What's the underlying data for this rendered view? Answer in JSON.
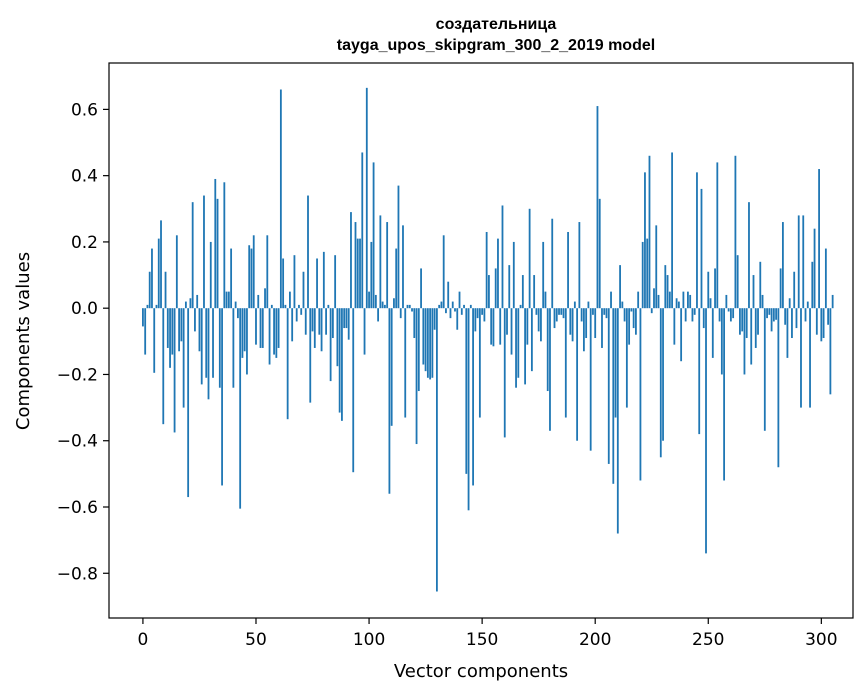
{
  "chart_data": {
    "type": "bar",
    "title_line1": "создательница",
    "title_line2": "tayga_upos_skipgram_300_2_2019 model",
    "xlabel": "Vector components",
    "ylabel": "Components values",
    "xlim": [
      -15,
      314
    ],
    "ylim": [
      -0.935,
      0.74
    ],
    "xticks": [
      0,
      50,
      100,
      150,
      200,
      250,
      300
    ],
    "xtick_labels": [
      "0",
      "50",
      "100",
      "150",
      "200",
      "250",
      "300"
    ],
    "yticks": [
      0.6,
      0.4,
      0.2,
      0.0,
      -0.2,
      -0.4,
      -0.6,
      -0.8
    ],
    "ytick_labels": [
      "0.6",
      "0.4",
      "0.2",
      "0.0",
      "−0.2",
      "−0.4",
      "−0.6",
      "−0.8"
    ],
    "bar_color": "#1f77b4",
    "values": [
      -0.055,
      -0.14,
      0.01,
      0.11,
      0.18,
      -0.195,
      0.01,
      0.21,
      0.265,
      -0.35,
      0.11,
      -0.12,
      -0.18,
      -0.14,
      -0.375,
      0.22,
      -0.13,
      -0.1,
      -0.3,
      0.02,
      -0.57,
      0.03,
      0.32,
      -0.07,
      0.04,
      -0.13,
      -0.23,
      0.34,
      -0.21,
      -0.275,
      0.2,
      -0.21,
      0.39,
      0.33,
      -0.24,
      -0.535,
      0.38,
      0.05,
      0.05,
      0.18,
      -0.24,
      0.02,
      -0.03,
      -0.605,
      -0.15,
      -0.13,
      -0.2,
      0.19,
      0.18,
      0.22,
      -0.11,
      0.04,
      -0.12,
      -0.12,
      0.06,
      0.22,
      -0.17,
      0.01,
      -0.14,
      -0.15,
      -0.12,
      0.66,
      0.15,
      0.01,
      -0.335,
      0.05,
      -0.1,
      0.16,
      -0.04,
      0.01,
      -0.02,
      0.11,
      -0.08,
      0.34,
      -0.285,
      -0.07,
      -0.12,
      0.15,
      -0.08,
      -0.13,
      0.17,
      -0.08,
      0.01,
      -0.22,
      -0.09,
      0.16,
      -0.175,
      -0.315,
      -0.34,
      -0.06,
      -0.06,
      -0.095,
      0.29,
      -0.495,
      0.26,
      0.21,
      0.21,
      0.47,
      -0.14,
      0.665,
      0.05,
      0.2,
      0.44,
      0.04,
      -0.04,
      0.28,
      0.02,
      0.01,
      0.26,
      -0.56,
      -0.355,
      0.03,
      0.18,
      0.37,
      -0.03,
      0.25,
      -0.33,
      0.01,
      0.01,
      -0.01,
      -0.09,
      -0.41,
      -0.25,
      0.12,
      -0.17,
      -0.19,
      -0.21,
      -0.215,
      -0.21,
      -0.065,
      -0.855,
      0.01,
      0.02,
      0.22,
      -0.015,
      0.08,
      -0.03,
      0.02,
      -0.01,
      -0.065,
      0.05,
      -0.02,
      0.01,
      -0.5,
      -0.61,
      0.01,
      -0.535,
      -0.07,
      -0.03,
      -0.33,
      -0.02,
      -0.04,
      0.23,
      0.1,
      -0.11,
      -0.115,
      0.12,
      0.21,
      -0.11,
      0.31,
      -0.39,
      -0.08,
      0.13,
      -0.14,
      0.2,
      -0.24,
      -0.21,
      0.01,
      0.1,
      -0.23,
      -0.11,
      0.3,
      -0.19,
      0.1,
      -0.02,
      -0.07,
      -0.1,
      0.2,
      0.05,
      -0.25,
      -0.37,
      0.27,
      -0.06,
      -0.04,
      -0.02,
      -0.02,
      -0.03,
      -0.33,
      0.23,
      -0.08,
      -0.1,
      0.02,
      -0.4,
      0.26,
      -0.04,
      -0.13,
      -0.09,
      0.02,
      -0.43,
      -0.02,
      -0.09,
      0.61,
      0.33,
      -0.12,
      -0.02,
      -0.03,
      -0.47,
      0.05,
      -0.53,
      -0.33,
      -0.68,
      0.13,
      0.02,
      -0.04,
      -0.3,
      -0.11,
      -0.01,
      -0.06,
      -0.08,
      0.05,
      -0.52,
      0.2,
      0.41,
      0.21,
      0.46,
      -0.015,
      0.06,
      0.25,
      0.04,
      -0.45,
      -0.4,
      0.13,
      0.1,
      0.05,
      0.47,
      -0.11,
      0.03,
      0.02,
      -0.16,
      0.05,
      -0.04,
      0.05,
      0.04,
      -0.04,
      -0.02,
      0.41,
      -0.38,
      0.36,
      -0.06,
      -0.74,
      0.11,
      0.03,
      -0.15,
      0.12,
      0.44,
      -0.04,
      -0.2,
      -0.52,
      0.04,
      -0.01,
      -0.04,
      -0.03,
      0.46,
      0.16,
      -0.08,
      -0.07,
      -0.2,
      -0.09,
      0.32,
      -0.17,
      0.1,
      -0.12,
      -0.08,
      0.14,
      0.04,
      -0.37,
      -0.03,
      -0.02,
      -0.07,
      -0.04,
      -0.035,
      -0.48,
      0.12,
      0.26,
      -0.05,
      -0.15,
      0.03,
      -0.09,
      0.11,
      -0.06,
      0.28,
      -0.3,
      0.28,
      -0.04,
      0.02,
      -0.3,
      0.14,
      0.24,
      -0.08,
      0.42,
      -0.1,
      -0.09,
      0.18,
      -0.05,
      -0.26,
      0.04
    ]
  }
}
